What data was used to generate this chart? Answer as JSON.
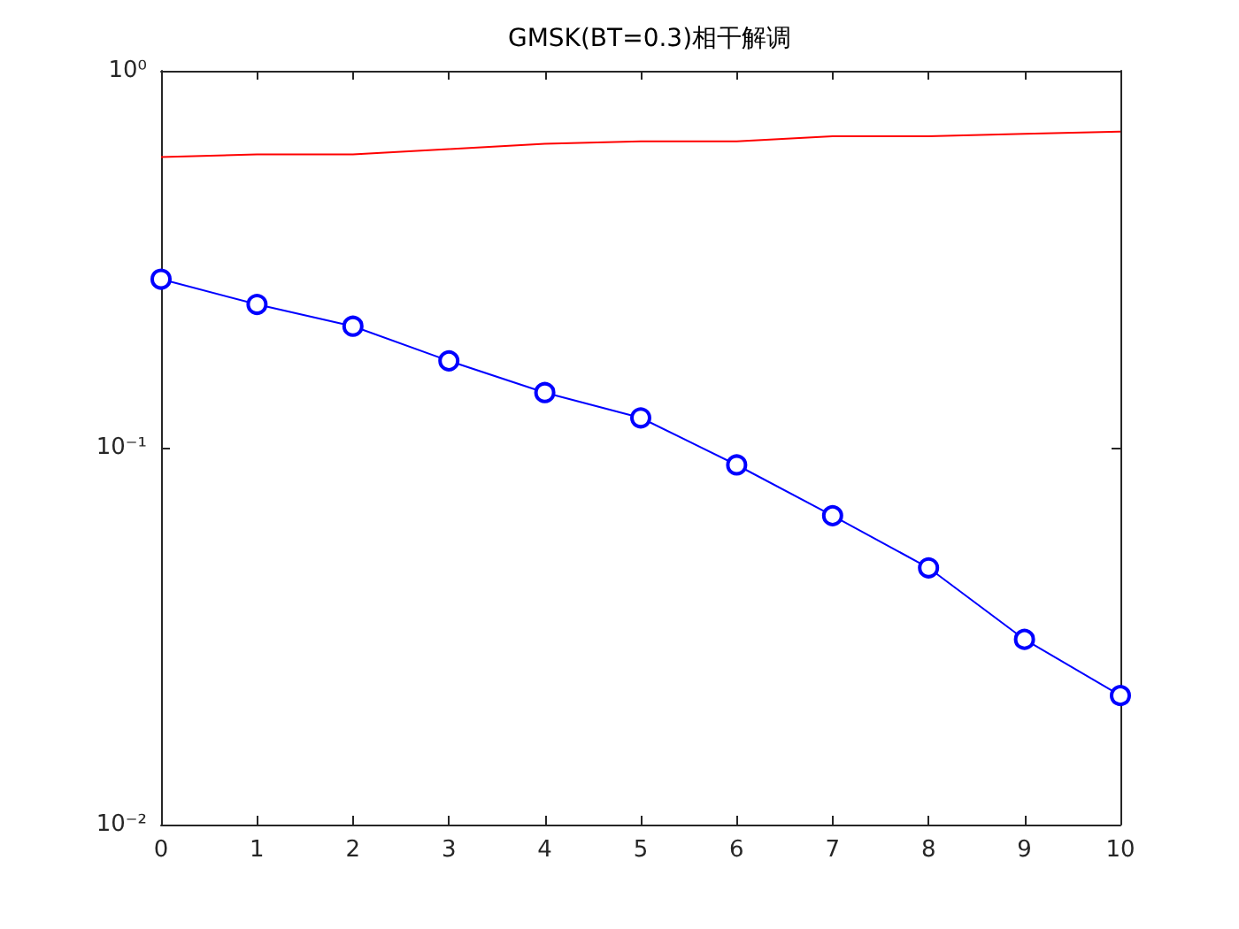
{
  "chart_data": {
    "type": "line",
    "title": "GMSK(BT=0.3)相干解调",
    "x": [
      0,
      1,
      2,
      3,
      4,
      5,
      6,
      7,
      8,
      9,
      10
    ],
    "series": [
      {
        "color": "#ff0000",
        "marker": "none",
        "values": [
          0.59,
          0.6,
          0.6,
          0.62,
          0.64,
          0.65,
          0.65,
          0.67,
          0.67,
          0.68,
          0.69
        ]
      },
      {
        "color": "#0000ff",
        "marker": "circle",
        "values": [
          0.28,
          0.24,
          0.21,
          0.17,
          0.14,
          0.12,
          0.09,
          0.066,
          0.048,
          0.031,
          0.022
        ]
      }
    ],
    "xlim": [
      0,
      10
    ],
    "xticks": [
      0,
      1,
      2,
      3,
      4,
      5,
      6,
      7,
      8,
      9,
      10
    ],
    "ylim": [
      0.01,
      1
    ],
    "yticks": [
      {
        "value": 0.01,
        "label": "10⁻²"
      },
      {
        "value": 0.1,
        "label": "10⁻¹"
      },
      {
        "value": 1,
        "label": "10⁰"
      }
    ],
    "log": "y",
    "grid": false
  }
}
